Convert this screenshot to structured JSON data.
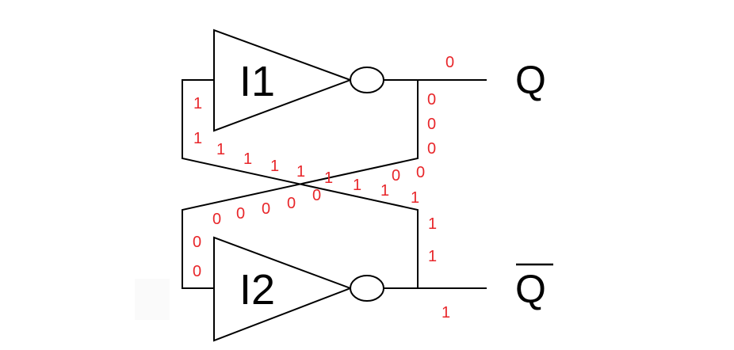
{
  "gates": {
    "top": {
      "label": "I1"
    },
    "bottom": {
      "label": "I2"
    }
  },
  "outputs": {
    "q": {
      "label": "Q"
    },
    "q_bar": {
      "label": "Q",
      "overline": true
    }
  },
  "colors": {
    "wire": "#000000",
    "logic_values": "#e8262a"
  },
  "logic_values": {
    "q_output": "0",
    "q_node_down": [
      "0",
      "0",
      "0"
    ],
    "i1_input_wire": [
      "1",
      "1"
    ],
    "cross_to_i1": [
      "1",
      "1",
      "1",
      "1",
      "1",
      "1",
      "1"
    ],
    "cross_from_q": [
      "0",
      "0"
    ],
    "cross_to_i2": [
      "0",
      "0",
      "0",
      "0",
      "0"
    ],
    "i2_input_wire": [
      "0",
      "0"
    ],
    "q_bar_node_up": [
      "1",
      "1",
      "1"
    ],
    "q_bar_output": "1"
  }
}
